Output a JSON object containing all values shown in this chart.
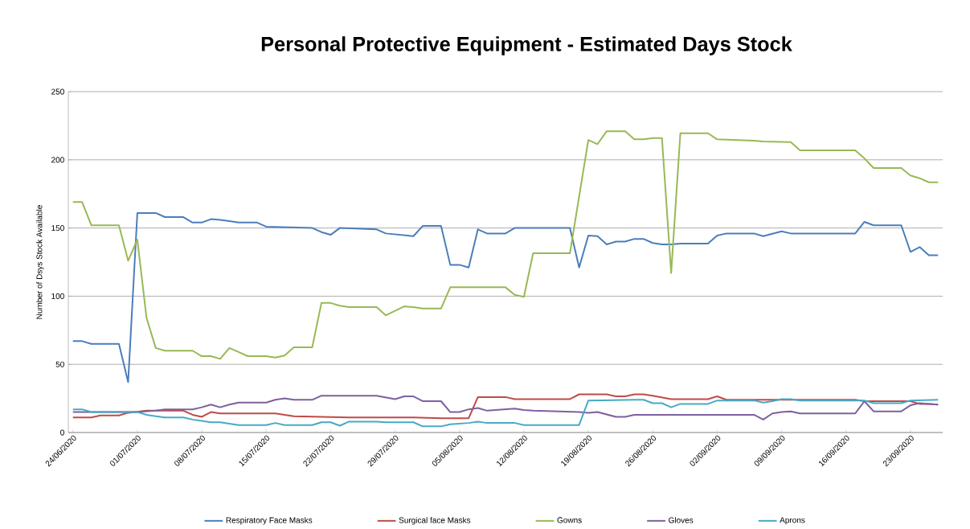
{
  "chart_data": {
    "type": "line",
    "title": "Personal Protective  Equipment - Estimated Days Stock",
    "ylabel": "Number of Dsys Stock Available",
    "xlim": [
      "2020-06-23T12:00",
      "2020-09-26T12:00"
    ],
    "xticks": [
      {
        "value": "2020-06-24",
        "label": "24/06/2020"
      },
      {
        "value": "2020-07-01",
        "label": "01/07/2020"
      },
      {
        "value": "2020-07-08",
        "label": "08/07/2020"
      },
      {
        "value": "2020-07-15",
        "label": "15/07/2020"
      },
      {
        "value": "2020-07-22",
        "label": "22/07/2020"
      },
      {
        "value": "2020-07-29",
        "label": "29/07/2020"
      },
      {
        "value": "2020-08-05",
        "label": "05/08/2020"
      },
      {
        "value": "2020-08-12",
        "label": "12/08/2020"
      },
      {
        "value": "2020-08-19",
        "label": "19/08/2020"
      },
      {
        "value": "2020-08-26",
        "label": "26/08/2020"
      },
      {
        "value": "2020-09-02",
        "label": "02/09/2020"
      },
      {
        "value": "2020-09-09",
        "label": "09/09/2020"
      },
      {
        "value": "2020-09-16",
        "label": "16/09/2020"
      },
      {
        "value": "2020-09-23",
        "label": "23/09/2020"
      }
    ],
    "ylim": [
      0,
      250
    ],
    "yticks": [
      0,
      50,
      100,
      150,
      200,
      250
    ],
    "grid": "y",
    "legend": "bottom",
    "marker": "none",
    "series": [
      {
        "name": "Respiratory Face Masks",
        "color": "#4a7ebb",
        "x": [
          "2020-06-24",
          "2020-06-25",
          "2020-06-26",
          "2020-06-29",
          "2020-06-30",
          "2020-07-01",
          "2020-07-03",
          "2020-07-04",
          "2020-07-06",
          "2020-07-07",
          "2020-07-08",
          "2020-07-09",
          "2020-07-10",
          "2020-07-11",
          "2020-07-12",
          "2020-07-14",
          "2020-07-15",
          "2020-07-20",
          "2020-07-21",
          "2020-07-22",
          "2020-07-23",
          "2020-07-27",
          "2020-07-28",
          "2020-07-31",
          "2020-08-01",
          "2020-08-03",
          "2020-08-04",
          "2020-08-05",
          "2020-08-06",
          "2020-08-07",
          "2020-08-08",
          "2020-08-10",
          "2020-08-11",
          "2020-08-17",
          "2020-08-18",
          "2020-08-19",
          "2020-08-20",
          "2020-08-21",
          "2020-08-22",
          "2020-08-23",
          "2020-08-24",
          "2020-08-25",
          "2020-08-26",
          "2020-08-27",
          "2020-08-28",
          "2020-08-29",
          "2020-09-01",
          "2020-09-02",
          "2020-09-03",
          "2020-09-06",
          "2020-09-07",
          "2020-09-09",
          "2020-09-10",
          "2020-09-17",
          "2020-09-18",
          "2020-09-19",
          "2020-09-22",
          "2020-09-23",
          "2020-09-24",
          "2020-09-25",
          "2020-09-26"
        ],
        "values": [
          67,
          67,
          65,
          65,
          37,
          161,
          161,
          158,
          158,
          154,
          154,
          156.5,
          156,
          155,
          154,
          154,
          151,
          150,
          147,
          145,
          150,
          149,
          146,
          144,
          151.5,
          151.5,
          123,
          123,
          121,
          149,
          146,
          146,
          150,
          150,
          121,
          144.5,
          144,
          138,
          140,
          140,
          142,
          142,
          139,
          138,
          138,
          138.5,
          138.5,
          144.5,
          146,
          146,
          144,
          147.5,
          146,
          146,
          154.5,
          152,
          152,
          132.5,
          136,
          130,
          130
        ]
      },
      {
        "name": "Surgical face Masks",
        "color": "#be4b48",
        "x": [
          "2020-06-24",
          "2020-06-26",
          "2020-06-27",
          "2020-06-29",
          "2020-06-30",
          "2020-07-02",
          "2020-07-06",
          "2020-07-07",
          "2020-07-08",
          "2020-07-09",
          "2020-07-10",
          "2020-07-16",
          "2020-07-17",
          "2020-07-18",
          "2020-07-24",
          "2020-07-31",
          "2020-08-03",
          "2020-08-06",
          "2020-08-07",
          "2020-08-10",
          "2020-08-11",
          "2020-08-17",
          "2020-08-18",
          "2020-08-21",
          "2020-08-22",
          "2020-08-23",
          "2020-08-24",
          "2020-08-25",
          "2020-08-26",
          "2020-08-28",
          "2020-09-01",
          "2020-09-02",
          "2020-09-03",
          "2020-09-17",
          "2020-09-18",
          "2020-09-23",
          "2020-09-24",
          "2020-09-25",
          "2020-09-26"
        ],
        "values": [
          11,
          11,
          12.5,
          12.5,
          14.5,
          16,
          16,
          13,
          11.5,
          15,
          14,
          14,
          13,
          12,
          11,
          11,
          10.5,
          10.5,
          26,
          26,
          24.5,
          24.5,
          28,
          28,
          26.5,
          26.5,
          28,
          28,
          27,
          24.5,
          24.5,
          26.5,
          24,
          24,
          23,
          23,
          21,
          21,
          20.5
        ]
      },
      {
        "name": "Gowns",
        "color": "#98b954",
        "x": [
          "2020-06-24",
          "2020-06-25",
          "2020-06-26",
          "2020-06-29",
          "2020-06-30",
          "2020-07-01",
          "2020-07-02",
          "2020-07-03",
          "2020-07-04",
          "2020-07-07",
          "2020-07-08",
          "2020-07-09",
          "2020-07-10",
          "2020-07-11",
          "2020-07-12",
          "2020-07-13",
          "2020-07-15",
          "2020-07-16",
          "2020-07-17",
          "2020-07-18",
          "2020-07-20",
          "2020-07-21",
          "2020-07-22",
          "2020-07-23",
          "2020-07-24",
          "2020-07-27",
          "2020-07-28",
          "2020-07-30",
          "2020-07-31",
          "2020-08-01",
          "2020-08-03",
          "2020-08-04",
          "2020-08-10",
          "2020-08-11",
          "2020-08-12",
          "2020-08-13",
          "2020-08-17",
          "2020-08-19",
          "2020-08-20",
          "2020-08-21",
          "2020-08-23",
          "2020-08-24",
          "2020-08-25",
          "2020-08-26",
          "2020-08-27",
          "2020-08-28",
          "2020-08-29",
          "2020-09-01",
          "2020-09-02",
          "2020-09-06",
          "2020-09-07",
          "2020-09-10",
          "2020-09-11",
          "2020-09-17",
          "2020-09-18",
          "2020-09-19",
          "2020-09-22",
          "2020-09-23",
          "2020-09-24",
          "2020-09-25",
          "2020-09-26"
        ],
        "values": [
          169,
          169,
          152,
          152,
          126,
          141.5,
          84,
          62,
          60,
          60,
          56,
          56,
          54,
          62,
          59,
          56,
          56,
          55,
          56.5,
          62.5,
          62.5,
          95,
          95,
          93,
          92,
          92,
          86,
          92.5,
          92,
          91,
          91,
          106.5,
          106.5,
          101,
          99.5,
          131.5,
          131.5,
          214.5,
          211.5,
          221,
          221,
          215,
          215,
          216,
          216,
          117,
          219.5,
          219.5,
          215,
          214,
          213.5,
          213,
          207,
          207,
          201,
          194,
          194,
          188.5,
          186.5,
          183.5,
          183.5
        ]
      },
      {
        "name": "Gloves",
        "color": "#7d60a0",
        "x": [
          "2020-06-24",
          "2020-07-01",
          "2020-07-03",
          "2020-07-04",
          "2020-07-07",
          "2020-07-08",
          "2020-07-09",
          "2020-07-10",
          "2020-07-11",
          "2020-07-12",
          "2020-07-15",
          "2020-07-16",
          "2020-07-17",
          "2020-07-18",
          "2020-07-20",
          "2020-07-21",
          "2020-07-27",
          "2020-07-29",
          "2020-07-30",
          "2020-07-31",
          "2020-08-01",
          "2020-08-03",
          "2020-08-04",
          "2020-08-05",
          "2020-08-06",
          "2020-08-07",
          "2020-08-08",
          "2020-08-11",
          "2020-08-12",
          "2020-08-13",
          "2020-08-18",
          "2020-08-19",
          "2020-08-20",
          "2020-08-22",
          "2020-08-23",
          "2020-08-24",
          "2020-09-06",
          "2020-09-07",
          "2020-09-08",
          "2020-09-09",
          "2020-09-10",
          "2020-09-11",
          "2020-09-17",
          "2020-09-18",
          "2020-09-19",
          "2020-09-22",
          "2020-09-23",
          "2020-09-24",
          "2020-09-25",
          "2020-09-26"
        ],
        "values": [
          15,
          15,
          16,
          17,
          17,
          18.5,
          20.5,
          18.5,
          20.5,
          22,
          22,
          24,
          25,
          24,
          24,
          27,
          27,
          24.5,
          26.5,
          26.5,
          23,
          23,
          15,
          15,
          17,
          18,
          16,
          17.5,
          16.5,
          16,
          15,
          14.5,
          15,
          11.5,
          11.5,
          13,
          13,
          9.5,
          14,
          15,
          15.5,
          14,
          14,
          23,
          15.5,
          15.5,
          20,
          21.5,
          21,
          20.5
        ]
      },
      {
        "name": "Aprons",
        "color": "#46aac5",
        "x": [
          "2020-06-24",
          "2020-06-25",
          "2020-06-26",
          "2020-07-01",
          "2020-07-02",
          "2020-07-03",
          "2020-07-04",
          "2020-07-06",
          "2020-07-07",
          "2020-07-08",
          "2020-07-09",
          "2020-07-10",
          "2020-07-11",
          "2020-07-12",
          "2020-07-15",
          "2020-07-16",
          "2020-07-17",
          "2020-07-20",
          "2020-07-21",
          "2020-07-22",
          "2020-07-23",
          "2020-07-24",
          "2020-07-27",
          "2020-07-28",
          "2020-07-31",
          "2020-08-01",
          "2020-08-03",
          "2020-08-04",
          "2020-08-05",
          "2020-08-06",
          "2020-08-07",
          "2020-08-08",
          "2020-08-11",
          "2020-08-12",
          "2020-08-18",
          "2020-08-19",
          "2020-08-24",
          "2020-08-25",
          "2020-08-26",
          "2020-08-27",
          "2020-08-28",
          "2020-08-29",
          "2020-09-01",
          "2020-09-02",
          "2020-09-06",
          "2020-09-07",
          "2020-09-08",
          "2020-09-09",
          "2020-09-10",
          "2020-09-11",
          "2020-09-18",
          "2020-09-19",
          "2020-09-22",
          "2020-09-23",
          "2020-09-26"
        ],
        "values": [
          17,
          17,
          15,
          15,
          13,
          12,
          11,
          11,
          9.5,
          8.5,
          7.5,
          7.5,
          6.5,
          5.5,
          5.5,
          7,
          5.5,
          5.5,
          7.5,
          7.5,
          5,
          8,
          8,
          7.5,
          7.5,
          4.5,
          4.5,
          6,
          6.5,
          7,
          8,
          7,
          7,
          5.5,
          5.5,
          23.5,
          24,
          24,
          21.5,
          21.5,
          18.5,
          21,
          21,
          23.5,
          23.5,
          22,
          23,
          24.5,
          24.5,
          23.5,
          23.5,
          21.5,
          21.5,
          23.5,
          24
        ]
      }
    ]
  }
}
